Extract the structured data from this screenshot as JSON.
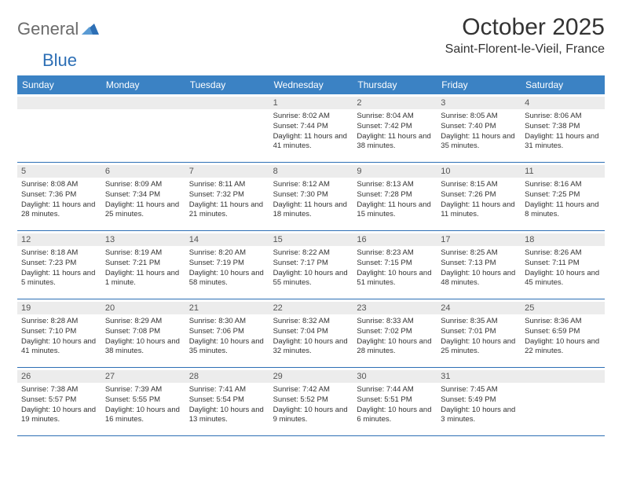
{
  "brand": {
    "text1": "General",
    "text2": "Blue",
    "text1_color": "#6b6b6b",
    "text2_color": "#2d6fb5"
  },
  "title": "October 2025",
  "location": "Saint-Florent-le-Vieil, France",
  "day_header_bg": "#3b82c4",
  "day_header_fg": "#ffffff",
  "daynum_bg": "#ececec",
  "border_color": "#2d6fb5",
  "day_names": [
    "Sunday",
    "Monday",
    "Tuesday",
    "Wednesday",
    "Thursday",
    "Friday",
    "Saturday"
  ],
  "weeks": [
    [
      {
        "n": "",
        "sr": "",
        "ss": "",
        "dl": ""
      },
      {
        "n": "",
        "sr": "",
        "ss": "",
        "dl": ""
      },
      {
        "n": "",
        "sr": "",
        "ss": "",
        "dl": ""
      },
      {
        "n": "1",
        "sr": "Sunrise: 8:02 AM",
        "ss": "Sunset: 7:44 PM",
        "dl": "Daylight: 11 hours and 41 minutes."
      },
      {
        "n": "2",
        "sr": "Sunrise: 8:04 AM",
        "ss": "Sunset: 7:42 PM",
        "dl": "Daylight: 11 hours and 38 minutes."
      },
      {
        "n": "3",
        "sr": "Sunrise: 8:05 AM",
        "ss": "Sunset: 7:40 PM",
        "dl": "Daylight: 11 hours and 35 minutes."
      },
      {
        "n": "4",
        "sr": "Sunrise: 8:06 AM",
        "ss": "Sunset: 7:38 PM",
        "dl": "Daylight: 11 hours and 31 minutes."
      }
    ],
    [
      {
        "n": "5",
        "sr": "Sunrise: 8:08 AM",
        "ss": "Sunset: 7:36 PM",
        "dl": "Daylight: 11 hours and 28 minutes."
      },
      {
        "n": "6",
        "sr": "Sunrise: 8:09 AM",
        "ss": "Sunset: 7:34 PM",
        "dl": "Daylight: 11 hours and 25 minutes."
      },
      {
        "n": "7",
        "sr": "Sunrise: 8:11 AM",
        "ss": "Sunset: 7:32 PM",
        "dl": "Daylight: 11 hours and 21 minutes."
      },
      {
        "n": "8",
        "sr": "Sunrise: 8:12 AM",
        "ss": "Sunset: 7:30 PM",
        "dl": "Daylight: 11 hours and 18 minutes."
      },
      {
        "n": "9",
        "sr": "Sunrise: 8:13 AM",
        "ss": "Sunset: 7:28 PM",
        "dl": "Daylight: 11 hours and 15 minutes."
      },
      {
        "n": "10",
        "sr": "Sunrise: 8:15 AM",
        "ss": "Sunset: 7:26 PM",
        "dl": "Daylight: 11 hours and 11 minutes."
      },
      {
        "n": "11",
        "sr": "Sunrise: 8:16 AM",
        "ss": "Sunset: 7:25 PM",
        "dl": "Daylight: 11 hours and 8 minutes."
      }
    ],
    [
      {
        "n": "12",
        "sr": "Sunrise: 8:18 AM",
        "ss": "Sunset: 7:23 PM",
        "dl": "Daylight: 11 hours and 5 minutes."
      },
      {
        "n": "13",
        "sr": "Sunrise: 8:19 AM",
        "ss": "Sunset: 7:21 PM",
        "dl": "Daylight: 11 hours and 1 minute."
      },
      {
        "n": "14",
        "sr": "Sunrise: 8:20 AM",
        "ss": "Sunset: 7:19 PM",
        "dl": "Daylight: 10 hours and 58 minutes."
      },
      {
        "n": "15",
        "sr": "Sunrise: 8:22 AM",
        "ss": "Sunset: 7:17 PM",
        "dl": "Daylight: 10 hours and 55 minutes."
      },
      {
        "n": "16",
        "sr": "Sunrise: 8:23 AM",
        "ss": "Sunset: 7:15 PM",
        "dl": "Daylight: 10 hours and 51 minutes."
      },
      {
        "n": "17",
        "sr": "Sunrise: 8:25 AM",
        "ss": "Sunset: 7:13 PM",
        "dl": "Daylight: 10 hours and 48 minutes."
      },
      {
        "n": "18",
        "sr": "Sunrise: 8:26 AM",
        "ss": "Sunset: 7:11 PM",
        "dl": "Daylight: 10 hours and 45 minutes."
      }
    ],
    [
      {
        "n": "19",
        "sr": "Sunrise: 8:28 AM",
        "ss": "Sunset: 7:10 PM",
        "dl": "Daylight: 10 hours and 41 minutes."
      },
      {
        "n": "20",
        "sr": "Sunrise: 8:29 AM",
        "ss": "Sunset: 7:08 PM",
        "dl": "Daylight: 10 hours and 38 minutes."
      },
      {
        "n": "21",
        "sr": "Sunrise: 8:30 AM",
        "ss": "Sunset: 7:06 PM",
        "dl": "Daylight: 10 hours and 35 minutes."
      },
      {
        "n": "22",
        "sr": "Sunrise: 8:32 AM",
        "ss": "Sunset: 7:04 PM",
        "dl": "Daylight: 10 hours and 32 minutes."
      },
      {
        "n": "23",
        "sr": "Sunrise: 8:33 AM",
        "ss": "Sunset: 7:02 PM",
        "dl": "Daylight: 10 hours and 28 minutes."
      },
      {
        "n": "24",
        "sr": "Sunrise: 8:35 AM",
        "ss": "Sunset: 7:01 PM",
        "dl": "Daylight: 10 hours and 25 minutes."
      },
      {
        "n": "25",
        "sr": "Sunrise: 8:36 AM",
        "ss": "Sunset: 6:59 PM",
        "dl": "Daylight: 10 hours and 22 minutes."
      }
    ],
    [
      {
        "n": "26",
        "sr": "Sunrise: 7:38 AM",
        "ss": "Sunset: 5:57 PM",
        "dl": "Daylight: 10 hours and 19 minutes."
      },
      {
        "n": "27",
        "sr": "Sunrise: 7:39 AM",
        "ss": "Sunset: 5:55 PM",
        "dl": "Daylight: 10 hours and 16 minutes."
      },
      {
        "n": "28",
        "sr": "Sunrise: 7:41 AM",
        "ss": "Sunset: 5:54 PM",
        "dl": "Daylight: 10 hours and 13 minutes."
      },
      {
        "n": "29",
        "sr": "Sunrise: 7:42 AM",
        "ss": "Sunset: 5:52 PM",
        "dl": "Daylight: 10 hours and 9 minutes."
      },
      {
        "n": "30",
        "sr": "Sunrise: 7:44 AM",
        "ss": "Sunset: 5:51 PM",
        "dl": "Daylight: 10 hours and 6 minutes."
      },
      {
        "n": "31",
        "sr": "Sunrise: 7:45 AM",
        "ss": "Sunset: 5:49 PM",
        "dl": "Daylight: 10 hours and 3 minutes."
      },
      {
        "n": "",
        "sr": "",
        "ss": "",
        "dl": ""
      }
    ]
  ]
}
